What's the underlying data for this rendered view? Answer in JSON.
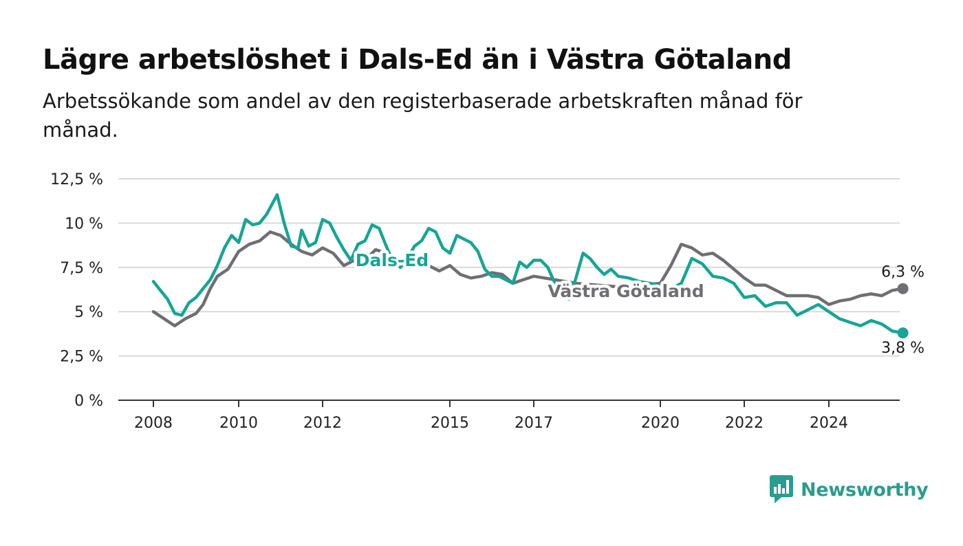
{
  "title": "Lägre arbetslöshet i Dals-Ed än i Västra Götaland",
  "subtitle": "Arbetssökande som andel av den registerbaserade arbetskraften månad för månad.",
  "brand": {
    "name": "Newsworthy",
    "icon": "newsworthy-logo-icon",
    "color": "#2a9d8f"
  },
  "chart_data": {
    "type": "line",
    "title": "Lägre arbetslöshet i Dals-Ed än i Västra Götaland",
    "subtitle": "Arbetssökande som andel av den registerbaserade arbetskraften månad för månad.",
    "xlabel": "",
    "ylabel": "",
    "x_ticks": [
      "2008",
      "2010",
      "2012",
      "2015",
      "2017",
      "2020",
      "2022",
      "2024"
    ],
    "y_ticks": [
      "0 %",
      "2,5 %",
      "5 %",
      "7,5 %",
      "10 %",
      "12,5 %"
    ],
    "ylim": [
      0,
      12.5
    ],
    "grid": true,
    "series": [
      {
        "name": "Västra Götaland",
        "color": "#6e6e73",
        "end_label": "6,3 %",
        "points": [
          [
            "2008-01",
            5.0
          ],
          [
            "2008-04",
            4.6
          ],
          [
            "2008-07",
            4.2
          ],
          [
            "2008-10",
            4.6
          ],
          [
            "2009-01",
            4.9
          ],
          [
            "2009-03",
            5.4
          ],
          [
            "2009-05",
            6.3
          ],
          [
            "2009-07",
            7.0
          ],
          [
            "2009-10",
            7.4
          ],
          [
            "2010-01",
            8.4
          ],
          [
            "2010-04",
            8.8
          ],
          [
            "2010-07",
            9.0
          ],
          [
            "2010-10",
            9.5
          ],
          [
            "2011-01",
            9.3
          ],
          [
            "2011-04",
            8.8
          ],
          [
            "2011-07",
            8.4
          ],
          [
            "2011-10",
            8.2
          ],
          [
            "2012-01",
            8.6
          ],
          [
            "2012-04",
            8.3
          ],
          [
            "2012-07",
            7.6
          ],
          [
            "2012-10",
            7.9
          ],
          [
            "2013-01",
            7.9
          ],
          [
            "2013-04",
            8.5
          ],
          [
            "2013-07",
            8.3
          ],
          [
            "2013-10",
            7.6
          ],
          [
            "2014-01",
            7.9
          ],
          [
            "2014-04",
            8.0
          ],
          [
            "2014-07",
            7.6
          ],
          [
            "2014-10",
            7.3
          ],
          [
            "2015-01",
            7.6
          ],
          [
            "2015-04",
            7.1
          ],
          [
            "2015-07",
            6.9
          ],
          [
            "2015-10",
            7.0
          ],
          [
            "2016-01",
            7.2
          ],
          [
            "2016-04",
            7.1
          ],
          [
            "2016-07",
            6.6
          ],
          [
            "2016-10",
            6.8
          ],
          [
            "2017-01",
            7.0
          ],
          [
            "2017-07",
            6.8
          ],
          [
            "2018-01",
            6.6
          ],
          [
            "2018-07",
            6.5
          ],
          [
            "2019-01",
            6.4
          ],
          [
            "2019-07",
            6.5
          ],
          [
            "2020-01",
            6.6
          ],
          [
            "2020-04",
            7.6
          ],
          [
            "2020-07",
            8.8
          ],
          [
            "2020-10",
            8.6
          ],
          [
            "2021-01",
            8.2
          ],
          [
            "2021-04",
            8.3
          ],
          [
            "2021-07",
            7.9
          ],
          [
            "2021-10",
            7.4
          ],
          [
            "2022-01",
            6.9
          ],
          [
            "2022-04",
            6.5
          ],
          [
            "2022-07",
            6.5
          ],
          [
            "2022-10",
            6.2
          ],
          [
            "2023-01",
            5.9
          ],
          [
            "2023-04",
            5.9
          ],
          [
            "2023-07",
            5.9
          ],
          [
            "2023-10",
            5.8
          ],
          [
            "2024-01",
            5.4
          ],
          [
            "2024-04",
            5.6
          ],
          [
            "2024-07",
            5.7
          ],
          [
            "2024-10",
            5.9
          ],
          [
            "2025-01",
            6.0
          ],
          [
            "2025-04",
            5.9
          ],
          [
            "2025-07",
            6.2
          ],
          [
            "2025-10",
            6.3
          ]
        ]
      },
      {
        "name": "Dals-Ed",
        "color": "#16a596",
        "end_label": "3,8 %",
        "points": [
          [
            "2008-01",
            6.7
          ],
          [
            "2008-03",
            6.2
          ],
          [
            "2008-05",
            5.7
          ],
          [
            "2008-07",
            4.9
          ],
          [
            "2008-09",
            4.8
          ],
          [
            "2008-11",
            5.5
          ],
          [
            "2009-01",
            5.8
          ],
          [
            "2009-03",
            6.3
          ],
          [
            "2009-05",
            6.8
          ],
          [
            "2009-07",
            7.6
          ],
          [
            "2009-09",
            8.6
          ],
          [
            "2009-11",
            9.3
          ],
          [
            "2010-01",
            8.9
          ],
          [
            "2010-03",
            10.2
          ],
          [
            "2010-05",
            9.9
          ],
          [
            "2010-07",
            10.0
          ],
          [
            "2010-09",
            10.5
          ],
          [
            "2010-12",
            11.6
          ],
          [
            "2011-02",
            10.0
          ],
          [
            "2011-04",
            8.7
          ],
          [
            "2011-06",
            8.6
          ],
          [
            "2011-07",
            9.6
          ],
          [
            "2011-09",
            8.7
          ],
          [
            "2011-11",
            8.9
          ],
          [
            "2012-01",
            10.2
          ],
          [
            "2012-03",
            10.0
          ],
          [
            "2012-05",
            9.2
          ],
          [
            "2012-07",
            8.5
          ],
          [
            "2012-09",
            7.9
          ],
          [
            "2012-11",
            8.8
          ],
          [
            "2013-01",
            9.0
          ],
          [
            "2013-03",
            9.9
          ],
          [
            "2013-05",
            9.7
          ],
          [
            "2013-07",
            8.7
          ],
          [
            "2013-09",
            7.8
          ],
          [
            "2013-11",
            7.5
          ],
          [
            "2014-01",
            8.0
          ],
          [
            "2014-03",
            8.7
          ],
          [
            "2014-05",
            9.0
          ],
          [
            "2014-07",
            9.7
          ],
          [
            "2014-09",
            9.5
          ],
          [
            "2014-11",
            8.6
          ],
          [
            "2015-01",
            8.3
          ],
          [
            "2015-03",
            9.3
          ],
          [
            "2015-05",
            9.1
          ],
          [
            "2015-07",
            8.9
          ],
          [
            "2015-09",
            8.4
          ],
          [
            "2015-11",
            7.4
          ],
          [
            "2016-01",
            7.0
          ],
          [
            "2016-03",
            7.0
          ],
          [
            "2016-05",
            6.8
          ],
          [
            "2016-07",
            6.6
          ],
          [
            "2016-09",
            7.8
          ],
          [
            "2016-11",
            7.5
          ],
          [
            "2017-01",
            7.9
          ],
          [
            "2017-03",
            7.9
          ],
          [
            "2017-05",
            7.5
          ],
          [
            "2017-07",
            6.6
          ],
          [
            "2017-09",
            5.9
          ],
          [
            "2017-11",
            5.7
          ],
          [
            "2018-01",
            6.9
          ],
          [
            "2018-03",
            8.3
          ],
          [
            "2018-05",
            8.0
          ],
          [
            "2018-07",
            7.5
          ],
          [
            "2018-09",
            7.1
          ],
          [
            "2018-11",
            7.4
          ],
          [
            "2019-01",
            7.0
          ],
          [
            "2019-04",
            6.9
          ],
          [
            "2019-07",
            6.7
          ],
          [
            "2019-10",
            6.6
          ],
          [
            "2020-01",
            6.5
          ],
          [
            "2020-04",
            6.3
          ],
          [
            "2020-07",
            6.6
          ],
          [
            "2020-10",
            8.0
          ],
          [
            "2021-01",
            7.7
          ],
          [
            "2021-04",
            7.0
          ],
          [
            "2021-07",
            6.9
          ],
          [
            "2021-10",
            6.6
          ],
          [
            "2022-01",
            5.8
          ],
          [
            "2022-04",
            5.9
          ],
          [
            "2022-07",
            5.3
          ],
          [
            "2022-10",
            5.5
          ],
          [
            "2023-01",
            5.5
          ],
          [
            "2023-04",
            4.8
          ],
          [
            "2023-07",
            5.1
          ],
          [
            "2023-10",
            5.4
          ],
          [
            "2024-01",
            5.0
          ],
          [
            "2024-04",
            4.6
          ],
          [
            "2024-07",
            4.4
          ],
          [
            "2024-10",
            4.2
          ],
          [
            "2025-01",
            4.5
          ],
          [
            "2025-04",
            4.3
          ],
          [
            "2025-07",
            3.9
          ],
          [
            "2025-10",
            3.8
          ]
        ]
      }
    ]
  }
}
